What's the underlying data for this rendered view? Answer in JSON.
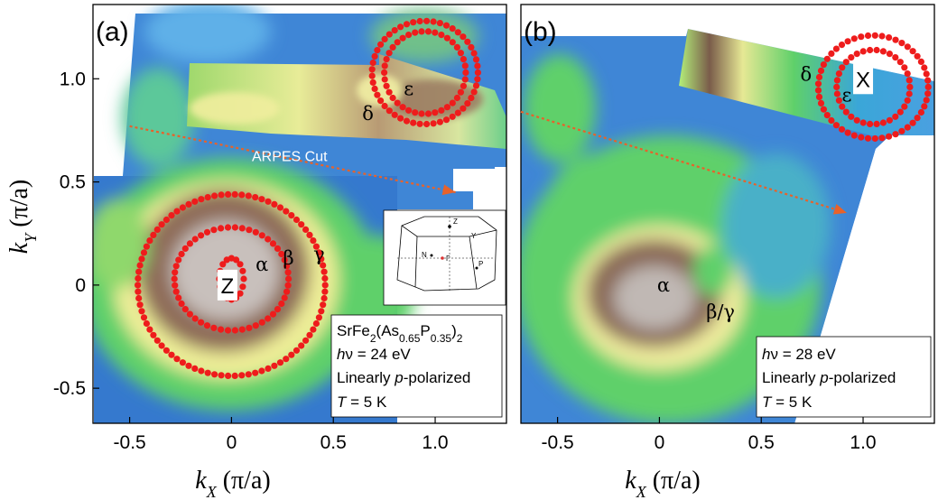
{
  "colors": {
    "fs_points": "#ee1c1c",
    "cut_arrow": "#e8622a",
    "low": "#2a6cc8",
    "mid": "#5fd06a",
    "high": "#f5f0a0",
    "peak": "#7a5a48"
  },
  "chart_data": [
    {
      "type": "scatter",
      "panel_label": "(a)",
      "xlabel": {
        "main": "k",
        "sub": "X",
        "unit": " (π/a)"
      },
      "ylabel": {
        "main": "k",
        "sub": "Y",
        "unit": " (π/a)"
      },
      "xlim": [
        -0.68,
        1.35
      ],
      "ylim": [
        -0.67,
        1.36
      ],
      "xticks": [
        "-0.5",
        "0",
        "0.5",
        "1.0"
      ],
      "xtick_values": [
        -0.5,
        0,
        0.5,
        1.0
      ],
      "yticks": [
        "1.0",
        "0.5",
        "0",
        "-0.5"
      ],
      "ytick_values": [
        1.0,
        0.5,
        0,
        -0.5
      ],
      "cut_label": "ARPES Cut",
      "cut": {
        "start": [
          -0.5,
          0.77
        ],
        "end": [
          1.1,
          0.45
        ]
      },
      "point_labels": [
        {
          "text": "Z",
          "x": -0.02,
          "y": 0.0,
          "box": true
        },
        {
          "text": "α",
          "x": 0.15,
          "y": 0.1
        },
        {
          "text": "β",
          "x": 0.28,
          "y": 0.13
        },
        {
          "text": "γ",
          "x": 0.43,
          "y": 0.15
        },
        {
          "text": "δ",
          "x": 0.67,
          "y": 0.83
        },
        {
          "text": "ε",
          "x": 0.87,
          "y": 0.95
        }
      ],
      "info": [
        "SrFe2(As0.65P0.35)2",
        "hν = 24 eV",
        "Linearly p-polarized",
        "T = 5 K"
      ],
      "brillouin_labels": [
        "Z",
        "Y",
        "N",
        "Γ",
        "P"
      ],
      "series": [
        {
          "name": "α",
          "cx": 0.0,
          "cy": 0.03,
          "rx": 0.06,
          "ry": 0.1
        },
        {
          "name": "β",
          "cx": 0.0,
          "cy": 0.03,
          "rx": 0.28,
          "ry": 0.25
        },
        {
          "name": "γ",
          "cx": 0.0,
          "cy": 0.0,
          "rx": 0.46,
          "ry": 0.44
        },
        {
          "name": "δ",
          "cx": 0.95,
          "cy": 1.03,
          "rx": 0.26,
          "ry": 0.25
        },
        {
          "name": "ε",
          "cx": 0.95,
          "cy": 1.03,
          "rx": 0.2,
          "ry": 0.2
        }
      ]
    },
    {
      "type": "scatter",
      "panel_label": "(b)",
      "xlabel": {
        "main": "k",
        "sub": "X",
        "unit": " (π/a)"
      },
      "xlim": [
        -0.68,
        1.35
      ],
      "ylim": [
        -0.67,
        1.36
      ],
      "xticks": [
        "-0.5",
        "0",
        "0.5",
        "1.0"
      ],
      "xtick_values": [
        -0.5,
        0,
        0.5,
        1.0
      ],
      "cut": {
        "start": [
          -0.68,
          0.84
        ],
        "end": [
          0.92,
          0.35
        ]
      },
      "point_labels": [
        {
          "text": "X",
          "x": 1.0,
          "y": 1.0,
          "box": true
        },
        {
          "text": "δ",
          "x": 0.72,
          "y": 1.02
        },
        {
          "text": "ε",
          "x": 0.92,
          "y": 0.92
        },
        {
          "text": "α",
          "x": 0.02,
          "y": 0.0
        },
        {
          "text": "β/γ",
          "x": 0.3,
          "y": -0.13
        }
      ],
      "info": [
        "hν = 28 eV",
        "Linearly p-polarized",
        "T = 5 K"
      ],
      "series": [
        {
          "name": "δ",
          "cx": 1.05,
          "cy": 0.96,
          "rx": 0.27,
          "ry": 0.25
        },
        {
          "name": "ε",
          "cx": 1.05,
          "cy": 0.96,
          "rx": 0.18,
          "ry": 0.18
        }
      ]
    }
  ]
}
